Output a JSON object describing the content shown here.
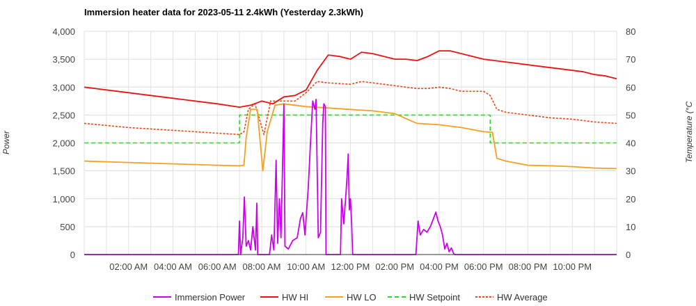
{
  "chart_data": {
    "type": "line",
    "title": "Immersion heater data for 2023-05-11 2.4kWh (Yesterday 2.3kWh)",
    "ylabel_left": "Power",
    "ylabel_right": "Temperature (°C",
    "ylim_left": [
      0,
      4000
    ],
    "ylim_right": [
      0,
      80
    ],
    "xlim": [
      0,
      24
    ],
    "y_ticks_left": [
      "0",
      "500",
      "1,000",
      "1,500",
      "2,000",
      "2,500",
      "3,000",
      "3,500",
      "4,000"
    ],
    "y_ticks_right": [
      "0",
      "10",
      "20",
      "30",
      "40",
      "50",
      "60",
      "70",
      "80"
    ],
    "x_ticks": [
      {
        "x": 2,
        "label": "02:00 AM"
      },
      {
        "x": 4,
        "label": "04:00 AM"
      },
      {
        "x": 6,
        "label": "06:00 AM"
      },
      {
        "x": 8,
        "label": "08:00 AM"
      },
      {
        "x": 10,
        "label": "10:00 AM"
      },
      {
        "x": 12,
        "label": "12:00 PM"
      },
      {
        "x": 14,
        "label": "02:00 PM"
      },
      {
        "x": 16,
        "label": "04:00 PM"
      },
      {
        "x": 18,
        "label": "06:00 PM"
      },
      {
        "x": 20,
        "label": "08:00 PM"
      },
      {
        "x": 22,
        "label": "10:00 PM"
      }
    ],
    "grid": true,
    "legend_position": "bottom",
    "series": [
      {
        "name": "Immersion Power",
        "axis": "left",
        "color": "#cc00ee",
        "style": "solid",
        "points": [
          [
            0,
            0
          ],
          [
            6.95,
            0
          ],
          [
            7.0,
            600
          ],
          [
            7.05,
            0
          ],
          [
            7.15,
            300
          ],
          [
            7.22,
            1030
          ],
          [
            7.3,
            150
          ],
          [
            7.4,
            250
          ],
          [
            7.5,
            80
          ],
          [
            7.6,
            500
          ],
          [
            7.72,
            80
          ],
          [
            7.78,
            920
          ],
          [
            7.82,
            0
          ],
          [
            8.35,
            0
          ],
          [
            8.45,
            350
          ],
          [
            8.55,
            80
          ],
          [
            8.65,
            1690
          ],
          [
            8.72,
            200
          ],
          [
            8.8,
            1000
          ],
          [
            8.87,
            300
          ],
          [
            9.0,
            2690
          ],
          [
            9.05,
            150
          ],
          [
            9.2,
            100
          ],
          [
            9.4,
            250
          ],
          [
            9.6,
            300
          ],
          [
            9.75,
            650
          ],
          [
            9.85,
            750
          ],
          [
            9.95,
            350
          ],
          [
            10.1,
            1200
          ],
          [
            10.2,
            2000
          ],
          [
            10.3,
            2750
          ],
          [
            10.4,
            2600
          ],
          [
            10.45,
            2780
          ],
          [
            10.55,
            300
          ],
          [
            10.65,
            400
          ],
          [
            10.75,
            2350
          ],
          [
            10.8,
            2700
          ],
          [
            10.87,
            2650
          ],
          [
            10.9,
            0
          ],
          [
            11.55,
            0
          ],
          [
            11.6,
            1000
          ],
          [
            11.7,
            550
          ],
          [
            11.8,
            1100
          ],
          [
            11.85,
            1400
          ],
          [
            11.9,
            1800
          ],
          [
            11.95,
            800
          ],
          [
            12.0,
            1000
          ],
          [
            12.05,
            600
          ],
          [
            12.1,
            0
          ],
          [
            14.95,
            0
          ],
          [
            15.05,
            600
          ],
          [
            15.15,
            350
          ],
          [
            15.3,
            450
          ],
          [
            15.45,
            400
          ],
          [
            15.6,
            500
          ],
          [
            15.75,
            650
          ],
          [
            15.85,
            760
          ],
          [
            15.95,
            600
          ],
          [
            16.05,
            500
          ],
          [
            16.15,
            350
          ],
          [
            16.25,
            100
          ],
          [
            16.35,
            200
          ],
          [
            16.45,
            50
          ],
          [
            16.55,
            120
          ],
          [
            16.65,
            20
          ],
          [
            16.7,
            0
          ],
          [
            24,
            0
          ]
        ]
      },
      {
        "name": "HW HI",
        "axis": "right",
        "color": "#ee1111",
        "style": "solid",
        "points": [
          [
            0,
            60
          ],
          [
            2,
            58
          ],
          [
            4,
            56
          ],
          [
            6,
            54
          ],
          [
            7,
            52.8
          ],
          [
            7.5,
            53.5
          ],
          [
            8,
            55
          ],
          [
            8.5,
            54
          ],
          [
            9,
            56.5
          ],
          [
            9.5,
            57
          ],
          [
            10,
            59
          ],
          [
            10.5,
            66
          ],
          [
            11,
            71.5
          ],
          [
            11.5,
            71
          ],
          [
            12,
            70
          ],
          [
            12.5,
            72.5
          ],
          [
            13,
            72
          ],
          [
            13.5,
            71
          ],
          [
            14,
            70
          ],
          [
            14.5,
            70
          ],
          [
            15,
            69.5
          ],
          [
            15.5,
            71
          ],
          [
            16,
            73
          ],
          [
            16.5,
            73
          ],
          [
            17,
            72
          ],
          [
            17.5,
            71
          ],
          [
            18,
            70
          ],
          [
            18.5,
            69.5
          ],
          [
            19,
            69
          ],
          [
            19.5,
            68.5
          ],
          [
            20,
            68
          ],
          [
            20.5,
            67.5
          ],
          [
            21,
            67
          ],
          [
            21.5,
            66.5
          ],
          [
            22,
            66
          ],
          [
            22.5,
            65.5
          ],
          [
            23,
            64.5
          ],
          [
            23.5,
            64
          ],
          [
            24,
            63
          ]
        ]
      },
      {
        "name": "HW LO",
        "axis": "right",
        "color": "#f5a020",
        "style": "solid",
        "points": [
          [
            0,
            33.5
          ],
          [
            2,
            33
          ],
          [
            4,
            32.5
          ],
          [
            6,
            32
          ],
          [
            7,
            31.8
          ],
          [
            7.2,
            32
          ],
          [
            7.3,
            42
          ],
          [
            7.5,
            52
          ],
          [
            7.8,
            52
          ],
          [
            8.05,
            30
          ],
          [
            8.25,
            44
          ],
          [
            8.6,
            53.5
          ],
          [
            9,
            54
          ],
          [
            10,
            53
          ],
          [
            11,
            52.5
          ],
          [
            12,
            52
          ],
          [
            13,
            51.5
          ],
          [
            14,
            50.5
          ],
          [
            15,
            47
          ],
          [
            16,
            46.5
          ],
          [
            17,
            45.5
          ],
          [
            18,
            44
          ],
          [
            18.4,
            43.8
          ],
          [
            18.6,
            34.5
          ],
          [
            19,
            33.5
          ],
          [
            20,
            32
          ],
          [
            21,
            31.8
          ],
          [
            22,
            31.5
          ],
          [
            23,
            31
          ],
          [
            24,
            30.8
          ]
        ]
      },
      {
        "name": "HW Setpoint",
        "axis": "right",
        "color": "#22dd22",
        "style": "dashed",
        "points": [
          [
            0,
            40
          ],
          [
            7,
            40
          ],
          [
            7,
            50
          ],
          [
            18.3,
            50
          ],
          [
            18.3,
            40
          ],
          [
            24,
            40
          ]
        ]
      },
      {
        "name": "HW Average",
        "axis": "right",
        "color": "#ee4411",
        "style": "dotted",
        "points": [
          [
            0,
            47
          ],
          [
            2,
            45.5
          ],
          [
            4,
            44.5
          ],
          [
            6,
            43.5
          ],
          [
            7,
            43
          ],
          [
            7.2,
            44
          ],
          [
            7.4,
            52
          ],
          [
            7.7,
            54
          ],
          [
            8.1,
            43
          ],
          [
            8.4,
            55
          ],
          [
            9,
            55
          ],
          [
            9.5,
            55
          ],
          [
            10,
            58
          ],
          [
            10.5,
            62
          ],
          [
            11,
            61.5
          ],
          [
            12,
            61
          ],
          [
            12.5,
            62
          ],
          [
            13,
            61.5
          ],
          [
            14,
            60.5
          ],
          [
            14.5,
            60
          ],
          [
            15,
            59.5
          ],
          [
            15.5,
            59.5
          ],
          [
            16,
            60
          ],
          [
            16.5,
            59.5
          ],
          [
            17,
            58.5
          ],
          [
            18,
            58.5
          ],
          [
            18.3,
            57
          ],
          [
            18.6,
            52
          ],
          [
            19,
            51
          ],
          [
            20,
            50
          ],
          [
            21,
            49
          ],
          [
            22,
            48.5
          ],
          [
            23,
            47.5
          ],
          [
            24,
            47
          ]
        ]
      }
    ]
  }
}
